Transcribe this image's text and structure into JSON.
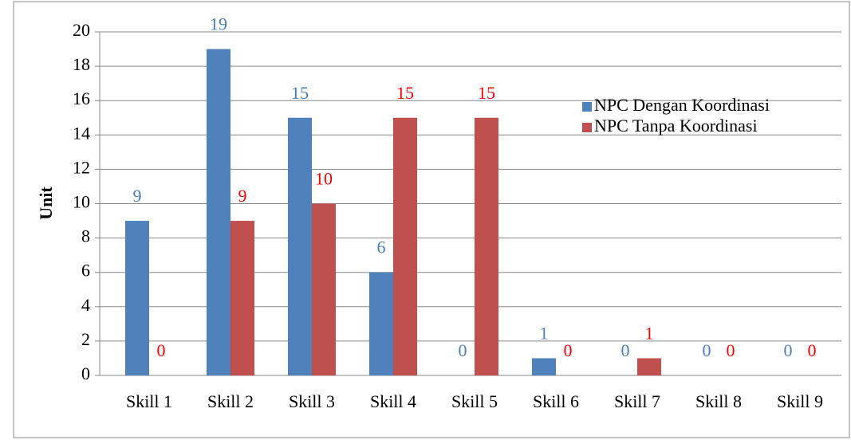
{
  "chart_data": {
    "type": "bar",
    "ylabel": "Unit",
    "categories": [
      "Skill 1",
      "Skill 2",
      "Skill 3",
      "Skill 4",
      "Skill 5",
      "Skill 6",
      "Skill 7",
      "Skill 8",
      "Skill 9"
    ],
    "series": [
      {
        "name": "NPC Dengan Koordinasi",
        "color": "#4f81bd",
        "label_color": "#4a7ebb",
        "values": [
          9,
          19,
          15,
          6,
          0,
          1,
          0,
          0,
          0
        ]
      },
      {
        "name": "NPC Tanpa Koordinasi",
        "color": "#c0504d",
        "label_color": "#ff0000",
        "values": [
          0,
          9,
          10,
          15,
          15,
          0,
          1,
          0,
          0
        ]
      }
    ],
    "ylim": [
      0,
      20
    ],
    "yticks": [
      0,
      2,
      4,
      6,
      8,
      10,
      12,
      14,
      16,
      18,
      20
    ],
    "grid": true
  }
}
